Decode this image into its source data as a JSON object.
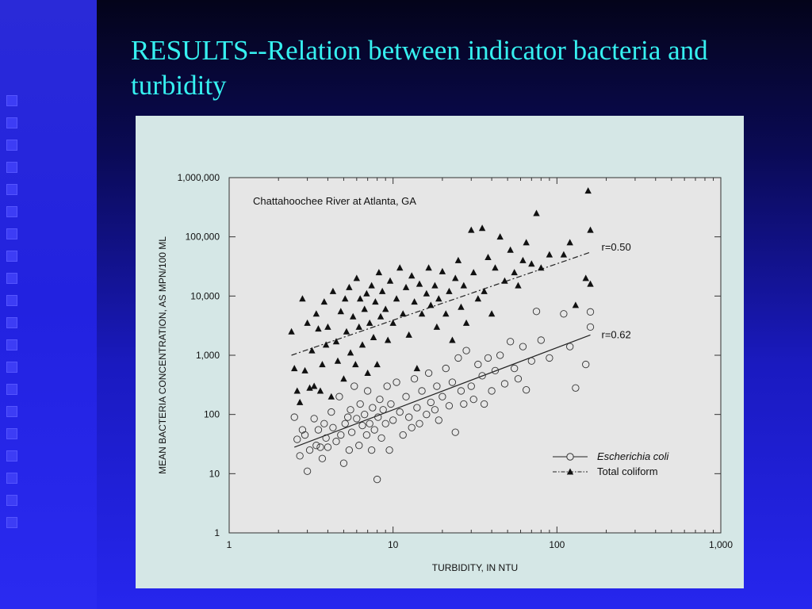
{
  "slide": {
    "title": "RESULTS--Relation between indicator bacteria and turbidity"
  },
  "colors": {
    "title": "#36f0f0",
    "panel": "#d5e7e6",
    "plot_area": "#e6e6e6"
  },
  "chart_data": {
    "type": "scatter",
    "title": "Chattahoochee River at Atlanta, GA",
    "xlabel": "TURBIDITY, IN NTU",
    "ylabel": "MEAN BACTERIA CONCENTRATION, AS MPN/100 ML",
    "x_scale": "log",
    "y_scale": "log",
    "xlim": [
      1,
      1000
    ],
    "ylim": [
      1,
      1000000
    ],
    "x_ticks": [
      1,
      10,
      100,
      1000
    ],
    "x_tick_labels": [
      "1",
      "10",
      "100",
      "1,000"
    ],
    "y_ticks": [
      1,
      10,
      100,
      1000,
      10000,
      100000,
      1000000
    ],
    "y_tick_labels": [
      "1",
      "10",
      "100",
      "1,000",
      "10,000",
      "100,000",
      "1,000,000"
    ],
    "grid": false,
    "legend_position": "bottom-right",
    "series": [
      {
        "name": "Escherichia coli",
        "marker": "open-circle",
        "line_style": "solid",
        "fit_label": "r=0.62",
        "fit_line": [
          [
            2.5,
            28
          ],
          [
            160,
            2200
          ]
        ],
        "points": [
          [
            2.5,
            90
          ],
          [
            2.6,
            38
          ],
          [
            2.7,
            20
          ],
          [
            2.8,
            55
          ],
          [
            2.9,
            45
          ],
          [
            3.0,
            11
          ],
          [
            3.1,
            25
          ],
          [
            3.3,
            85
          ],
          [
            3.4,
            30
          ],
          [
            3.5,
            55
          ],
          [
            3.6,
            28
          ],
          [
            3.7,
            18
          ],
          [
            3.8,
            70
          ],
          [
            3.9,
            40
          ],
          [
            4.0,
            28
          ],
          [
            4.2,
            110
          ],
          [
            4.3,
            60
          ],
          [
            4.5,
            35
          ],
          [
            4.7,
            200
          ],
          [
            4.8,
            45
          ],
          [
            5.0,
            15
          ],
          [
            5.1,
            70
          ],
          [
            5.3,
            90
          ],
          [
            5.4,
            25
          ],
          [
            5.5,
            120
          ],
          [
            5.6,
            50
          ],
          [
            5.8,
            300
          ],
          [
            6.0,
            85
          ],
          [
            6.2,
            30
          ],
          [
            6.3,
            150
          ],
          [
            6.5,
            65
          ],
          [
            6.7,
            100
          ],
          [
            6.9,
            45
          ],
          [
            7.0,
            250
          ],
          [
            7.2,
            70
          ],
          [
            7.4,
            25
          ],
          [
            7.5,
            130
          ],
          [
            7.7,
            55
          ],
          [
            8.0,
            8
          ],
          [
            8.1,
            90
          ],
          [
            8.3,
            180
          ],
          [
            8.5,
            40
          ],
          [
            8.7,
            120
          ],
          [
            9.0,
            70
          ],
          [
            9.2,
            300
          ],
          [
            9.5,
            25
          ],
          [
            9.7,
            150
          ],
          [
            10,
            80
          ],
          [
            10.5,
            350
          ],
          [
            11,
            110
          ],
          [
            11.5,
            45
          ],
          [
            12,
            200
          ],
          [
            12.5,
            90
          ],
          [
            13,
            60
          ],
          [
            13.5,
            400
          ],
          [
            14,
            130
          ],
          [
            14.5,
            70
          ],
          [
            15,
            250
          ],
          [
            16,
            100
          ],
          [
            16.5,
            500
          ],
          [
            17,
            160
          ],
          [
            18,
            120
          ],
          [
            18.5,
            300
          ],
          [
            19,
            80
          ],
          [
            20,
            200
          ],
          [
            21,
            600
          ],
          [
            22,
            140
          ],
          [
            23,
            350
          ],
          [
            24,
            50
          ],
          [
            25,
            900
          ],
          [
            26,
            250
          ],
          [
            27,
            150
          ],
          [
            28,
            1200
          ],
          [
            30,
            300
          ],
          [
            31,
            180
          ],
          [
            33,
            700
          ],
          [
            35,
            450
          ],
          [
            36,
            150
          ],
          [
            38,
            900
          ],
          [
            40,
            250
          ],
          [
            42,
            550
          ],
          [
            45,
            1000
          ],
          [
            48,
            330
          ],
          [
            52,
            1700
          ],
          [
            55,
            600
          ],
          [
            58,
            400
          ],
          [
            62,
            1400
          ],
          [
            65,
            260
          ],
          [
            70,
            800
          ],
          [
            75,
            5500
          ],
          [
            80,
            1800
          ],
          [
            90,
            900
          ],
          [
            110,
            5000
          ],
          [
            120,
            1400
          ],
          [
            130,
            280
          ],
          [
            150,
            700
          ],
          [
            160,
            3000
          ],
          [
            160,
            5400
          ]
        ]
      },
      {
        "name": "Total coliform",
        "marker": "filled-triangle",
        "line_style": "dash-dot",
        "fit_label": "r=0.50",
        "fit_line": [
          [
            2.4,
            1000
          ],
          [
            160,
            55000
          ]
        ],
        "points": [
          [
            2.4,
            2500
          ],
          [
            2.5,
            600
          ],
          [
            2.6,
            250
          ],
          [
            2.7,
            160
          ],
          [
            2.8,
            9000
          ],
          [
            2.9,
            550
          ],
          [
            3.0,
            3500
          ],
          [
            3.1,
            280
          ],
          [
            3.2,
            1200
          ],
          [
            3.3,
            300
          ],
          [
            3.4,
            5000
          ],
          [
            3.5,
            2800
          ],
          [
            3.6,
            250
          ],
          [
            3.7,
            700
          ],
          [
            3.8,
            8000
          ],
          [
            3.9,
            1500
          ],
          [
            4.0,
            3000
          ],
          [
            4.2,
            200
          ],
          [
            4.3,
            12000
          ],
          [
            4.5,
            1700
          ],
          [
            4.6,
            800
          ],
          [
            4.8,
            5500
          ],
          [
            5.0,
            400
          ],
          [
            5.1,
            9000
          ],
          [
            5.2,
            2500
          ],
          [
            5.4,
            14000
          ],
          [
            5.5,
            1100
          ],
          [
            5.7,
            4500
          ],
          [
            5.9,
            700
          ],
          [
            6.0,
            20000
          ],
          [
            6.2,
            3000
          ],
          [
            6.3,
            9000
          ],
          [
            6.5,
            1500
          ],
          [
            6.7,
            6000
          ],
          [
            6.9,
            11000
          ],
          [
            7.0,
            500
          ],
          [
            7.2,
            3500
          ],
          [
            7.4,
            15000
          ],
          [
            7.6,
            2000
          ],
          [
            7.8,
            8000
          ],
          [
            8.0,
            700
          ],
          [
            8.2,
            25000
          ],
          [
            8.4,
            4500
          ],
          [
            8.6,
            12000
          ],
          [
            9.0,
            6000
          ],
          [
            9.3,
            1800
          ],
          [
            9.6,
            18000
          ],
          [
            10,
            3500
          ],
          [
            10.5,
            9000
          ],
          [
            11,
            30000
          ],
          [
            11.5,
            5000
          ],
          [
            12,
            14000
          ],
          [
            12.5,
            2200
          ],
          [
            13,
            22000
          ],
          [
            13.5,
            8000
          ],
          [
            14,
            600
          ],
          [
            14.5,
            16000
          ],
          [
            15,
            5000
          ],
          [
            16,
            11000
          ],
          [
            16.5,
            30000
          ],
          [
            17,
            7000
          ],
          [
            18,
            15000
          ],
          [
            18.5,
            3000
          ],
          [
            19,
            9000
          ],
          [
            20,
            26000
          ],
          [
            21,
            5000
          ],
          [
            22,
            12000
          ],
          [
            23,
            1800
          ],
          [
            24,
            20000
          ],
          [
            25,
            40000
          ],
          [
            26,
            6500
          ],
          [
            27,
            15000
          ],
          [
            28,
            3500
          ],
          [
            30,
            130000
          ],
          [
            31,
            25000
          ],
          [
            33,
            9000
          ],
          [
            35,
            140000
          ],
          [
            36,
            12000
          ],
          [
            38,
            45000
          ],
          [
            40,
            5000
          ],
          [
            42,
            30000
          ],
          [
            45,
            100000
          ],
          [
            48,
            18000
          ],
          [
            52,
            60000
          ],
          [
            55,
            25000
          ],
          [
            58,
            15000
          ],
          [
            62,
            40000
          ],
          [
            65,
            80000
          ],
          [
            70,
            35000
          ],
          [
            75,
            250000
          ],
          [
            80,
            30000
          ],
          [
            90,
            50000
          ],
          [
            110,
            50000
          ],
          [
            120,
            80000
          ],
          [
            130,
            7000
          ],
          [
            150,
            20000
          ],
          [
            155,
            600000
          ],
          [
            160,
            130000
          ],
          [
            160,
            16000
          ]
        ]
      }
    ]
  }
}
